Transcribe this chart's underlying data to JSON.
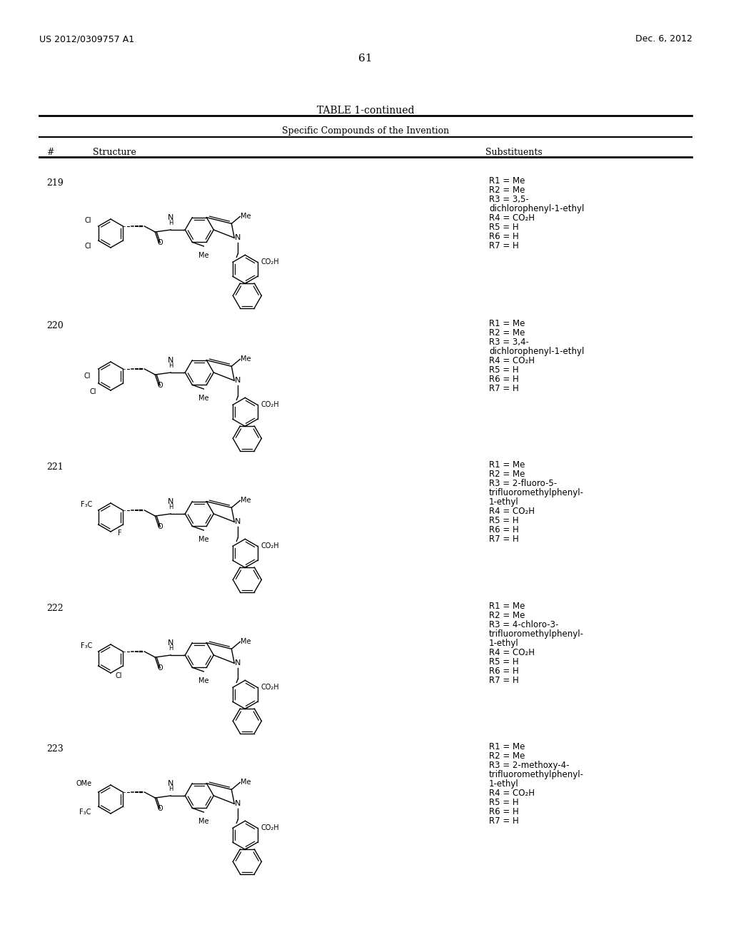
{
  "background_color": "#ffffff",
  "page_number": "61",
  "header_left": "US 2012/0309757 A1",
  "header_right": "Dec. 6, 2012",
  "table_title": "TABLE 1-continued",
  "table_subtitle": "Specific Compounds of the Invention",
  "col_headers": [
    "#",
    "Structure",
    "Substituents"
  ],
  "compounds": [
    {
      "number": "219",
      "substituents": [
        "R1 = Me",
        "R2 = Me",
        "R3 = 3,5-",
        "dichlorophenyl-1-ethyl",
        "R4 = CO₂H",
        "R5 = H",
        "R6 = H",
        "R7 = H"
      ]
    },
    {
      "number": "220",
      "substituents": [
        "R1 = Me",
        "R2 = Me",
        "R3 = 3,4-",
        "dichlorophenyl-1-ethyl",
        "R4 = CO₂H",
        "R5 = H",
        "R6 = H",
        "R7 = H"
      ]
    },
    {
      "number": "221",
      "substituents": [
        "R1 = Me",
        "R2 = Me",
        "R3 = 2-fluoro-5-",
        "trifluoromethylphenyl-",
        "1-ethyl",
        "R4 = CO₂H",
        "R5 = H",
        "R6 = H",
        "R7 = H"
      ]
    },
    {
      "number": "222",
      "substituents": [
        "R1 = Me",
        "R2 = Me",
        "R3 = 4-chloro-3-",
        "trifluoromethylphenyl-",
        "1-ethyl",
        "R4 = CO₂H",
        "R5 = H",
        "R6 = H",
        "R7 = H"
      ]
    },
    {
      "number": "223",
      "substituents": [
        "R1 = Me",
        "R2 = Me",
        "R3 = 2-methoxy-4-",
        "trifluoromethylphenyl-",
        "1-ethyl",
        "R4 = CO₂H",
        "R5 = H",
        "R6 = H",
        "R7 = H"
      ]
    }
  ],
  "structure_images": [
    "compound_219",
    "compound_220",
    "compound_221",
    "compound_222",
    "compound_223"
  ]
}
